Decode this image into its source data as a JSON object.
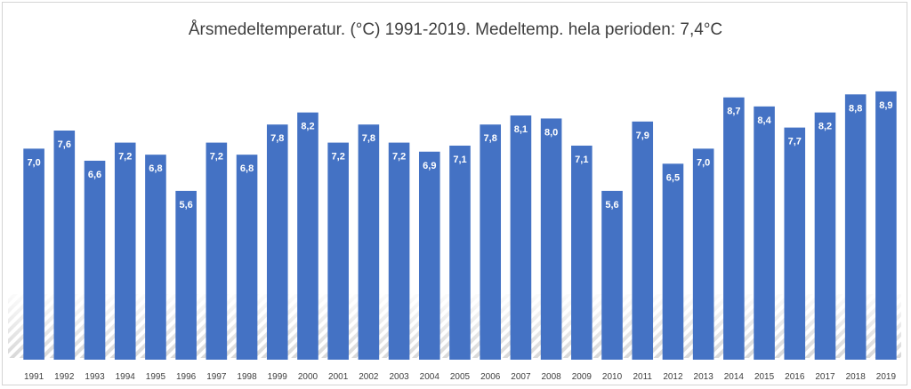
{
  "chart_data": {
    "type": "bar",
    "title": "Årsmedeltemperatur. (°C) 1991-2019.  Medeltemp. hela perioden: 7,4°C",
    "xlabel": "",
    "ylabel": "",
    "ylim": [
      0,
      9.25
    ],
    "grid": false,
    "legend": "none",
    "bar_color": "#4472c4",
    "label_color": "#ffffff",
    "categories": [
      "1991",
      "1992",
      "1993",
      "1994",
      "1995",
      "1996",
      "1997",
      "1998",
      "1999",
      "2000",
      "2001",
      "2002",
      "2003",
      "2004",
      "2005",
      "2006",
      "2007",
      "2008",
      "2009",
      "2010",
      "2011",
      "2012",
      "2013",
      "2014",
      "2015",
      "2016",
      "2017",
      "2018",
      "2019"
    ],
    "values": [
      7.0,
      7.6,
      6.6,
      7.2,
      6.8,
      5.6,
      7.2,
      6.8,
      7.8,
      8.2,
      7.2,
      7.8,
      7.2,
      6.9,
      7.1,
      7.8,
      8.1,
      8.0,
      7.1,
      5.6,
      7.9,
      6.5,
      7.0,
      8.7,
      8.4,
      7.7,
      8.2,
      8.8,
      8.9
    ],
    "data_labels": [
      "7,0",
      "7,6",
      "6,6",
      "7,2",
      "6,8",
      "5,6",
      "7,2",
      "6,8",
      "7,8",
      "8,2",
      "7,2",
      "7,8",
      "7,2",
      "6,9",
      "7,1",
      "7,8",
      "8,1",
      "8,0",
      "7,1",
      "5,6",
      "7,9",
      "6,5",
      "7,0",
      "8,7",
      "8,4",
      "7,7",
      "8,2",
      "8,8",
      "8,9"
    ]
  }
}
